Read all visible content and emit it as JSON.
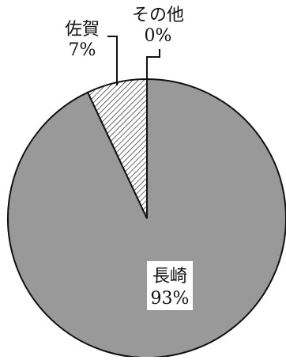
{
  "chart_data": {
    "type": "pie",
    "slices": [
      {
        "label": "長崎",
        "value": 93,
        "value_label": "93%",
        "fill": "#999999",
        "pattern": "none"
      },
      {
        "label": "佐賀",
        "value": 7,
        "value_label": "7%",
        "fill": "#ffffff",
        "pattern": "diagonal-hatch"
      },
      {
        "label": "その他",
        "value": 0,
        "value_label": "0%",
        "fill": "#ffffff",
        "pattern": "none"
      }
    ],
    "start_angle": "12 o'clock",
    "direction": "clockwise",
    "title": "",
    "legend": "none"
  }
}
